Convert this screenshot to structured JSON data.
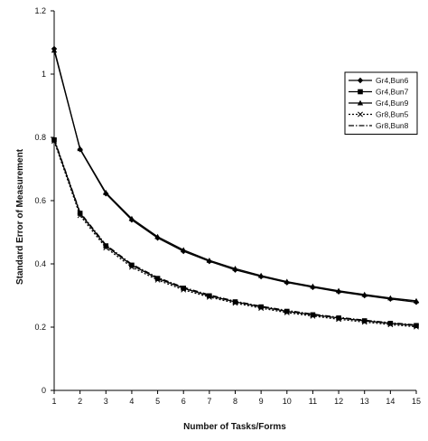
{
  "chart_data": {
    "type": "line",
    "title": "",
    "xlabel": "Number of Tasks/Forms",
    "ylabel": "Standard Error of Measurement",
    "xlim": [
      1,
      15
    ],
    "ylim": [
      0,
      1.2
    ],
    "x_ticks": [
      "1",
      "2",
      "3",
      "4",
      "5",
      "6",
      "7",
      "8",
      "9",
      "10",
      "11",
      "12",
      "13",
      "14",
      "15"
    ],
    "y_ticks": [
      "0",
      "0.2",
      "0.4",
      "0.6",
      "0.8",
      "1",
      "1.2"
    ],
    "grid": false,
    "legend_position": "top-right",
    "x": [
      1,
      2,
      3,
      4,
      5,
      6,
      7,
      8,
      9,
      10,
      11,
      12,
      13,
      14,
      15
    ],
    "series": [
      {
        "name": "Gr4,Bun6",
        "marker": "diamond",
        "line_style": "solid",
        "values": [
          1.08,
          0.762,
          0.622,
          0.539,
          0.482,
          0.44,
          0.408,
          0.381,
          0.36,
          0.341,
          0.326,
          0.312,
          0.3,
          0.289,
          0.279
        ]
      },
      {
        "name": "Gr4,Bun7",
        "marker": "square",
        "line_style": "solid",
        "values": [
          0.792,
          0.56,
          0.457,
          0.396,
          0.354,
          0.323,
          0.299,
          0.28,
          0.264,
          0.25,
          0.239,
          0.229,
          0.22,
          0.212,
          0.205
        ]
      },
      {
        "name": "Gr4,Bun9",
        "marker": "triangle",
        "line_style": "solid",
        "values": [
          1.075,
          0.764,
          0.625,
          0.543,
          0.486,
          0.444,
          0.411,
          0.385,
          0.363,
          0.344,
          0.329,
          0.315,
          0.303,
          0.292,
          0.283
        ]
      },
      {
        "name": "Gr8,Bun5",
        "marker": "x",
        "line_style": "dotted",
        "values": [
          0.788,
          0.553,
          0.451,
          0.39,
          0.349,
          0.318,
          0.295,
          0.276,
          0.26,
          0.246,
          0.235,
          0.225,
          0.216,
          0.208,
          0.201
        ]
      },
      {
        "name": "Gr8,Bun8",
        "marker": "none",
        "line_style": "dashdot",
        "values": [
          0.795,
          0.563,
          0.46,
          0.399,
          0.357,
          0.326,
          0.302,
          0.282,
          0.266,
          0.253,
          0.241,
          0.231,
          0.222,
          0.214,
          0.207
        ]
      }
    ]
  }
}
